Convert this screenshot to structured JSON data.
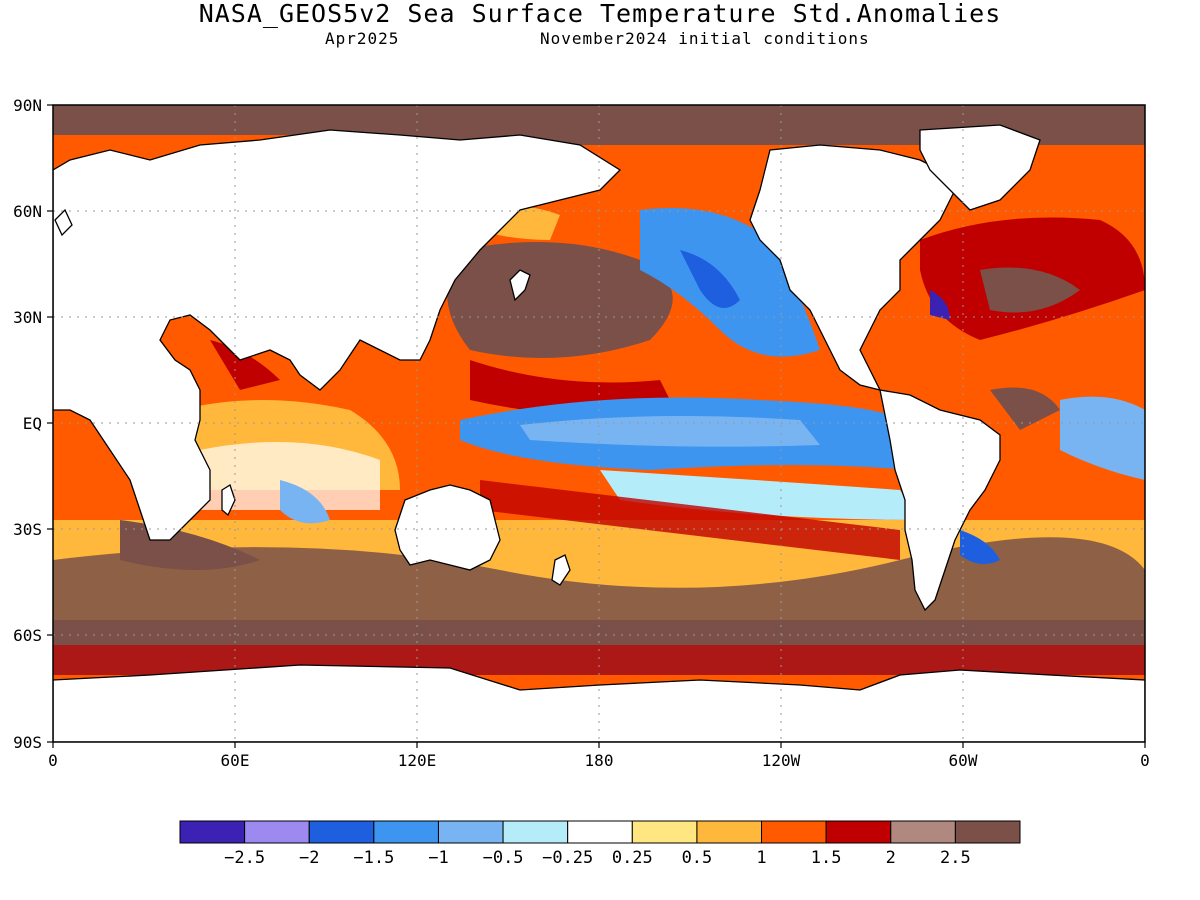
{
  "title": "NASA_GEOS5v2 Sea Surface Temperature Std.Anomalies",
  "subtitle_left": "Apr2025",
  "subtitle_right": "November2024 initial conditions",
  "colors": {
    "land": "#ffffff",
    "coast": "#000000",
    "grid": "#999999"
  },
  "map": {
    "lat_labels": [
      "90N",
      "60N",
      "30N",
      "EQ",
      "30S",
      "60S",
      "90S"
    ],
    "lon_labels": [
      "0",
      "60E",
      "120E",
      "180",
      "120W",
      "60W",
      "0"
    ]
  },
  "colorbar": {
    "colors": [
      "#3b22b3",
      "#9c8af0",
      "#1e5fe0",
      "#3d95f0",
      "#78b4f2",
      "#b4ecfa",
      "#ffffff",
      "#ffe680",
      "#ffb83b",
      "#ff5a00",
      "#c00000",
      "#b08880",
      "#7a5048"
    ],
    "ticks": [
      "−2.5",
      "−2",
      "−1.5",
      "−1",
      "−0.5",
      "−0.25",
      "0.25",
      "0.5",
      "1",
      "1.5",
      "2",
      "2.5"
    ]
  }
}
